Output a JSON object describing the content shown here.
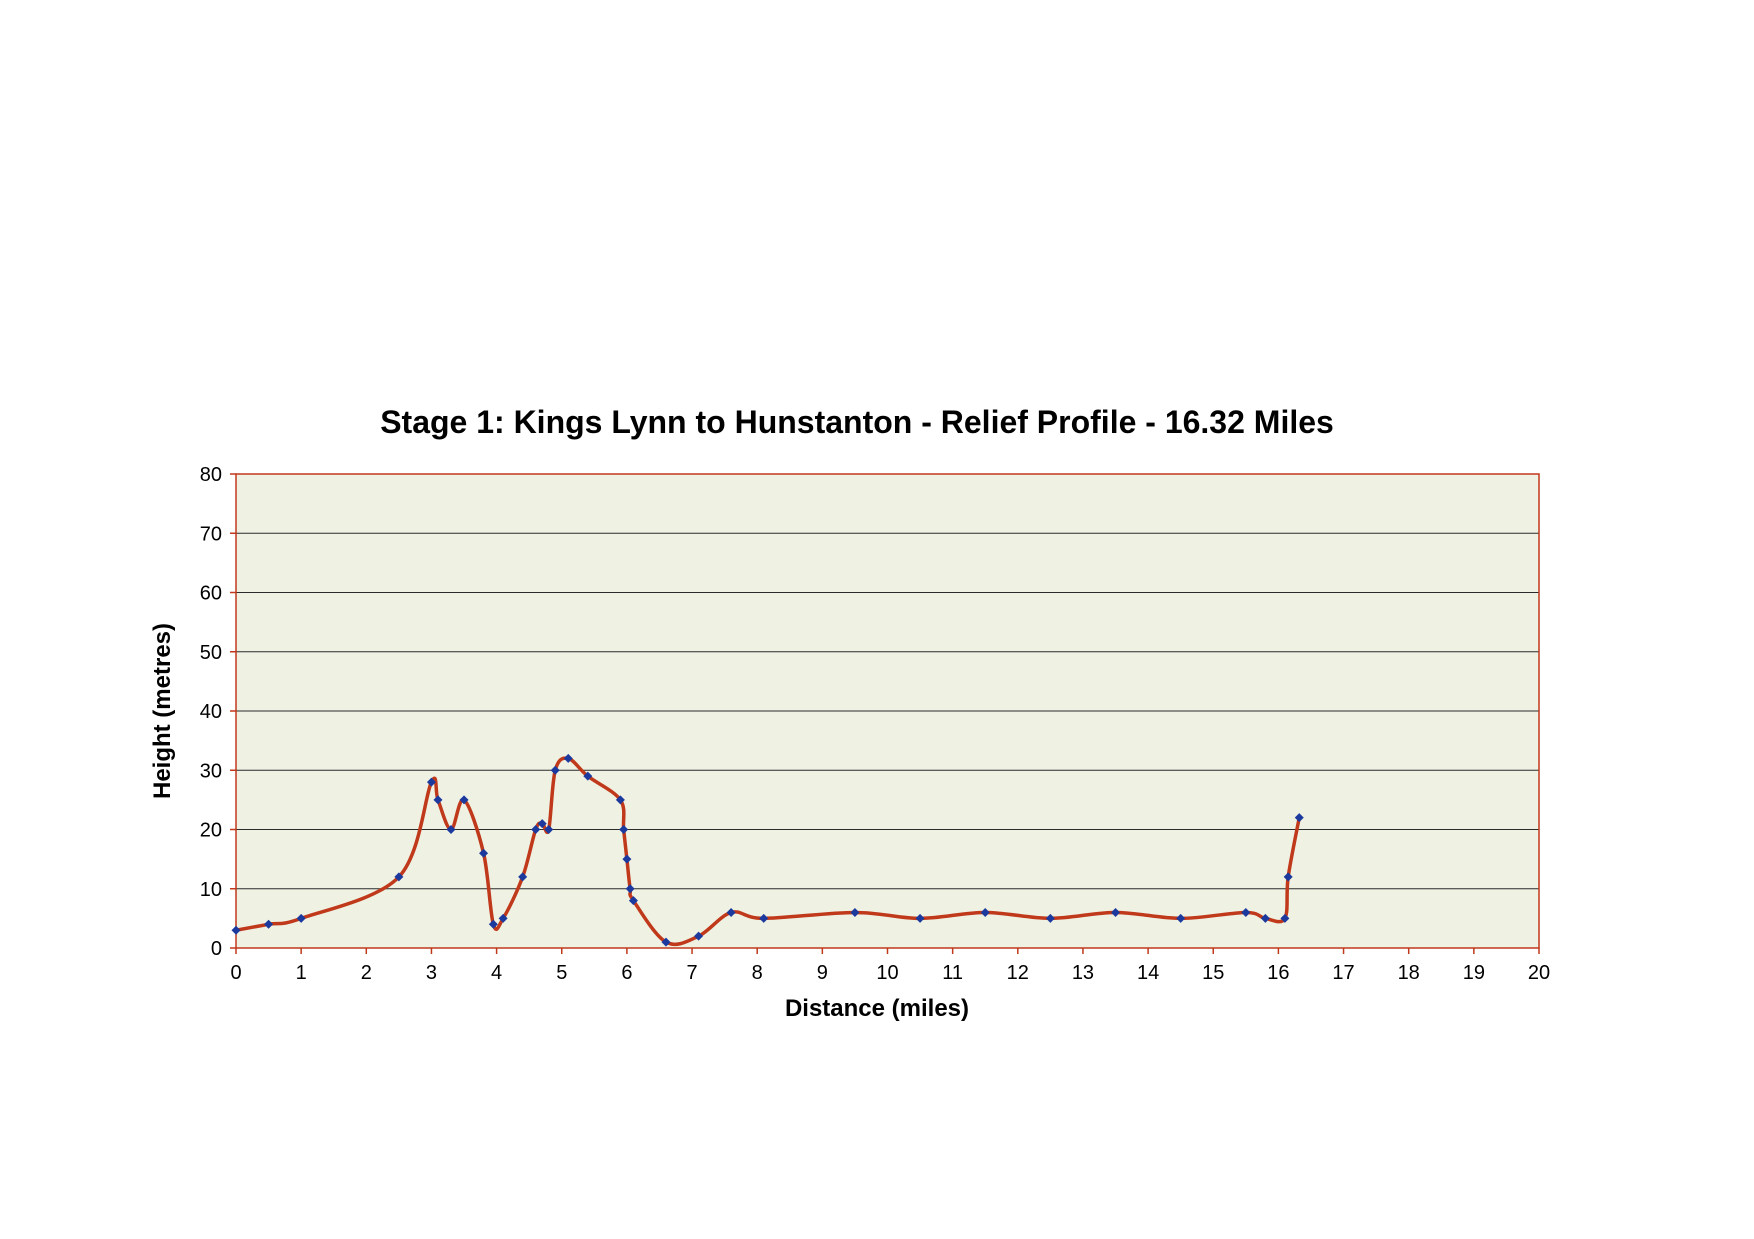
{
  "colors": {
    "plot_background": "#eff1e3",
    "plot_border": "#c0391b",
    "gridline": "#2b2b2b",
    "series_line": "#c0391b",
    "marker": "#1c3a9e"
  },
  "chart_data": {
    "type": "line",
    "title": "Stage 1: Kings Lynn to Hunstanton - Relief Profile - 16.32 Miles",
    "xlabel": "Distance (miles)",
    "ylabel": "Height (metres)",
    "xlim": [
      0,
      20
    ],
    "ylim": [
      0,
      80
    ],
    "x_ticks": [
      "0",
      "1",
      "2",
      "3",
      "4",
      "5",
      "6",
      "7",
      "8",
      "9",
      "10",
      "11",
      "12",
      "13",
      "14",
      "15",
      "16",
      "17",
      "18",
      "19",
      "20"
    ],
    "y_ticks": [
      "0",
      "10",
      "20",
      "30",
      "40",
      "50",
      "60",
      "70",
      "80"
    ],
    "grid": "horizontal",
    "legend": "none",
    "smoothed": true,
    "series": [
      {
        "marker": "diamond",
        "points": [
          [
            0,
            3
          ],
          [
            0.5,
            4
          ],
          [
            1,
            5
          ],
          [
            2.5,
            12
          ],
          [
            3,
            28
          ],
          [
            3.1,
            25
          ],
          [
            3.3,
            20
          ],
          [
            3.5,
            25
          ],
          [
            3.8,
            16
          ],
          [
            3.95,
            4
          ],
          [
            4.1,
            5
          ],
          [
            4.4,
            12
          ],
          [
            4.6,
            20
          ],
          [
            4.7,
            21
          ],
          [
            4.8,
            20
          ],
          [
            4.9,
            30
          ],
          [
            5.1,
            32
          ],
          [
            5.4,
            29
          ],
          [
            5.9,
            25
          ],
          [
            5.95,
            20
          ],
          [
            6,
            15
          ],
          [
            6.05,
            10
          ],
          [
            6.1,
            8
          ],
          [
            6.6,
            1
          ],
          [
            7.1,
            2
          ],
          [
            7.6,
            6
          ],
          [
            8.1,
            5
          ],
          [
            9.5,
            6
          ],
          [
            10.5,
            5
          ],
          [
            11.5,
            6
          ],
          [
            12.5,
            5
          ],
          [
            13.5,
            6
          ],
          [
            14.5,
            5
          ],
          [
            15.5,
            6
          ],
          [
            15.8,
            5
          ],
          [
            16.1,
            5
          ],
          [
            16.15,
            12
          ],
          [
            16.32,
            22
          ]
        ]
      }
    ]
  }
}
